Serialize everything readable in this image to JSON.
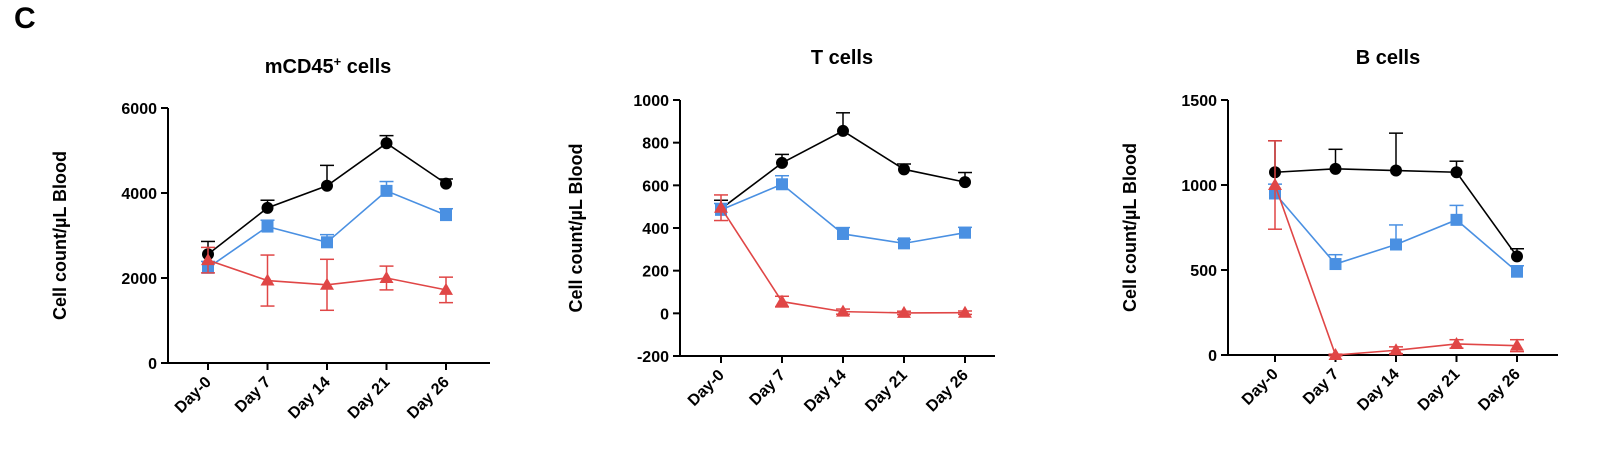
{
  "panel_label": "C",
  "chart_data": [
    {
      "type": "line",
      "title": "mCD45",
      "title_sup": "+",
      "title_suffix": " cells",
      "ylabel": "Cell count/µL Blood",
      "xlabel": "",
      "categories": [
        "Day-0",
        "Day 7",
        "Day 14",
        "Day 21",
        "Day 26"
      ],
      "ylim": [
        0,
        6000
      ],
      "yticks": [
        0,
        2000,
        4000,
        6000
      ],
      "grid": false,
      "series": [
        {
          "marker": "circle",
          "color": "#000000",
          "values": [
            2560,
            3650,
            4170,
            5170,
            4220
          ],
          "error": [
            300,
            180,
            480,
            180,
            110
          ]
        },
        {
          "marker": "square",
          "color": "#4a90e2",
          "values": [
            2240,
            3210,
            2840,
            4050,
            3480
          ],
          "error": [
            150,
            150,
            180,
            220,
            150
          ]
        },
        {
          "marker": "triangle",
          "color": "#e04646",
          "values": [
            2420,
            1940,
            1840,
            2000,
            1720
          ],
          "error": [
            300,
            600,
            600,
            280,
            300
          ]
        }
      ]
    },
    {
      "type": "line",
      "title": "T cells",
      "title_sup": "",
      "title_suffix": "",
      "ylabel": "Cell count/µL Blood",
      "xlabel": "",
      "categories": [
        "Day-0",
        "Day 7",
        "Day 14",
        "Day 21",
        "Day 26"
      ],
      "ylim": [
        -200,
        1000
      ],
      "yticks": [
        -200,
        0,
        200,
        400,
        600,
        800,
        1000
      ],
      "grid": false,
      "series": [
        {
          "marker": "circle",
          "color": "#000000",
          "values": [
            490,
            705,
            855,
            675,
            615
          ],
          "error": [
            40,
            40,
            85,
            25,
            45
          ]
        },
        {
          "marker": "square",
          "color": "#4a90e2",
          "values": [
            485,
            605,
            372,
            328,
            378
          ],
          "error": [
            30,
            40,
            30,
            18,
            25
          ]
        },
        {
          "marker": "triangle",
          "color": "#e04646",
          "values": [
            495,
            55,
            8,
            2,
            3
          ],
          "error": [
            60,
            25,
            12,
            8,
            8
          ]
        }
      ]
    },
    {
      "type": "line",
      "title": "B cells",
      "title_sup": "",
      "title_suffix": "",
      "ylabel": "Cell count/µL Blood",
      "xlabel": "",
      "categories": [
        "Day-0",
        "Day 7",
        "Day 14",
        "Day 21",
        "Day 26"
      ],
      "ylim": [
        0,
        1500
      ],
      "yticks": [
        0,
        500,
        1000,
        1500
      ],
      "grid": false,
      "series": [
        {
          "marker": "circle",
          "color": "#000000",
          "values": [
            1075,
            1095,
            1085,
            1075,
            580
          ],
          "error": [
            185,
            115,
            220,
            65,
            45
          ]
        },
        {
          "marker": "square",
          "color": "#4a90e2",
          "values": [
            950,
            535,
            650,
            795,
            490
          ],
          "error": [
            55,
            55,
            115,
            85,
            35
          ]
        },
        {
          "marker": "triangle",
          "color": "#e04646",
          "values": [
            1000,
            0,
            28,
            65,
            55
          ],
          "error": [
            260,
            5,
            20,
            25,
            35
          ]
        }
      ]
    }
  ]
}
